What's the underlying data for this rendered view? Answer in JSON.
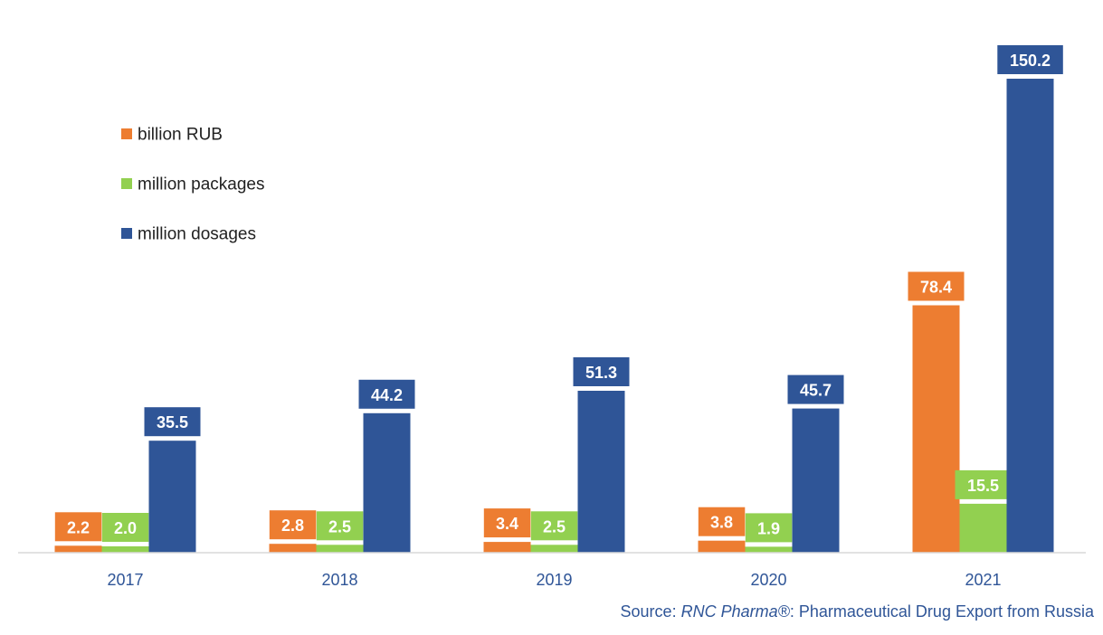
{
  "chart_data": {
    "type": "bar",
    "categories": [
      "2017",
      "2018",
      "2019",
      "2020",
      "2021"
    ],
    "series": [
      {
        "name": "billion RUB",
        "color": "#ED7D31",
        "values": [
          2.2,
          2.8,
          3.4,
          3.8,
          78.4
        ],
        "labels": [
          "2.2",
          "2.8",
          "3.4",
          "3.8",
          "78.4"
        ]
      },
      {
        "name": "million packages",
        "color": "#92D050",
        "values": [
          2.0,
          2.5,
          2.5,
          1.9,
          15.5
        ],
        "labels": [
          "2.0",
          "2.5",
          "2.5",
          "1.9",
          "15.5"
        ]
      },
      {
        "name": "million dosages",
        "color": "#2F5597",
        "values": [
          35.5,
          44.2,
          51.3,
          45.7,
          150.2
        ],
        "labels": [
          "35.5",
          "44.2",
          "51.3",
          "45.7",
          "150.2"
        ]
      }
    ],
    "ylim": [
      0,
      150.2
    ],
    "grid": false,
    "legend_position": "top-left",
    "tick_label_color": "#2F5597"
  },
  "source": {
    "prefix": "Source: ",
    "brand": "RNC Pharma®",
    "suffix": ": Pharmaceutical Drug Export from Russia",
    "color": "#2F5597"
  }
}
